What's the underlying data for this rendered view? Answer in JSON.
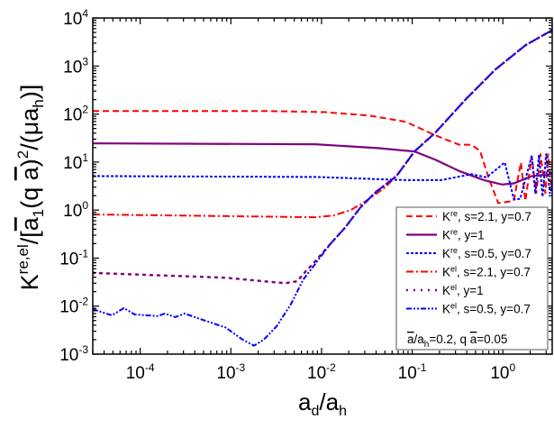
{
  "chart_data": {
    "type": "line",
    "xlabel": {
      "main": "a",
      "sub1": "d",
      "slash": "/a",
      "sub2": "h"
    },
    "ylabel": {
      "k": "K",
      "sup1": "re,el",
      "p1": "/[",
      "abar": "a",
      "sub1": "1",
      "p2": "(q ",
      "abar2": "a",
      "p3": ")",
      "sup2": "2",
      "p4": "/(μa",
      "sub2": "h",
      "p5": ")]"
    },
    "x_scale": "log",
    "y_scale": "log",
    "xlim": [
      3e-05,
      3.5
    ],
    "ylim": [
      0.001,
      10000
    ],
    "grid": false,
    "legend_position": "bottom-right",
    "x_ticks": [
      {
        "value": 0.0001,
        "base": "10",
        "exp": "-4"
      },
      {
        "value": 0.001,
        "base": "10",
        "exp": "-3"
      },
      {
        "value": 0.01,
        "base": "10",
        "exp": "-2"
      },
      {
        "value": 0.1,
        "base": "10",
        "exp": "-1"
      },
      {
        "value": 1,
        "base": "10",
        "exp": "0"
      }
    ],
    "y_ticks": [
      {
        "value": 0.001,
        "base": "10",
        "exp": "-3"
      },
      {
        "value": 0.01,
        "base": "10",
        "exp": "-2"
      },
      {
        "value": 0.1,
        "base": "10",
        "exp": "-1"
      },
      {
        "value": 1,
        "base": "10",
        "exp": "0"
      },
      {
        "value": 10,
        "base": "10",
        "exp": "1"
      },
      {
        "value": 100,
        "base": "10",
        "exp": "2"
      },
      {
        "value": 1000,
        "base": "10",
        "exp": "3"
      },
      {
        "value": 10000,
        "base": "10",
        "exp": "4"
      }
    ],
    "series": [
      {
        "name": "K^re, s=2.1, y=0.7",
        "k": "K",
        "sup": "re",
        "rest": ", s=2.1, y=0.7",
        "color": "#ff0000",
        "style": "dashed",
        "x": [
          3e-05,
          0.0027,
          0.0107,
          0.034,
          0.085,
          0.155,
          0.21,
          0.33,
          0.45,
          0.56,
          0.71,
          0.89,
          1.32,
          1.58,
          1.77,
          2.08,
          2.33,
          2.6,
          2.94,
          3.15,
          3.45
        ],
        "y": [
          115,
          115,
          110,
          93,
          69,
          41,
          32,
          23,
          23,
          17,
          4.2,
          1.4,
          1.55,
          9.8,
          1.55,
          13.5,
          2.2,
          15,
          2.2,
          15,
          2.7
        ]
      },
      {
        "name": "K^re, y=1",
        "k": "K",
        "sup": "re",
        "rest": ", y=1",
        "color": "#800080",
        "style": "solid",
        "x": [
          3e-05,
          0.0085,
          0.042,
          0.106,
          0.18,
          0.33,
          0.62,
          0.98,
          1.32,
          2.08,
          3.5
        ],
        "y": [
          24.5,
          23.5,
          19.5,
          16.6,
          11.2,
          6.5,
          4.2,
          3.4,
          3.6,
          5.1,
          5.6
        ]
      },
      {
        "name": "K^re, s=0.5, y=0.7",
        "k": "K",
        "sup": "re",
        "rest": ", s=0.5, y=0.7",
        "color": "#0000ff",
        "style": "dotted",
        "x": [
          3e-05,
          0.0085,
          0.085,
          0.21,
          0.45,
          0.66,
          1.05,
          1.32,
          1.55,
          2.08,
          2.28,
          2.5,
          2.74,
          3.0,
          3.3,
          3.5
        ],
        "y": [
          5.1,
          4.9,
          4.2,
          4.2,
          5.6,
          4.8,
          9.8,
          1.7,
          1.7,
          13.5,
          2.2,
          14,
          1.9,
          15,
          2.2,
          3.4
        ]
      },
      {
        "name": "K^el, s=2.1, y=0.7",
        "k": "K",
        "sup": "el",
        "rest": ", s=2.1, y=0.7",
        "color": "#ff0000",
        "style": "dashdot",
        "x": [
          3e-05,
          0.0085,
          0.0135,
          0.021,
          0.031,
          0.05,
          0.067,
          0.106,
          0.18,
          0.39,
          0.83,
          1.77,
          3.5
        ],
        "y": [
          0.81,
          0.71,
          0.77,
          1.0,
          1.55,
          2.95,
          5.1,
          16.6,
          41,
          204,
          850,
          2700,
          5600
        ]
      },
      {
        "name": "K^el, y=1",
        "k": "K",
        "sup": "el",
        "rest": ", y=1",
        "color": "#800080",
        "style": "sparsedot",
        "x": [
          3e-05,
          0.00087,
          0.0027,
          0.004,
          0.0054,
          0.0068,
          0.008,
          0.0126,
          0.018,
          0.027,
          0.04,
          0.067,
          0.106,
          0.18,
          0.39,
          0.83,
          1.77,
          3.5
        ],
        "y": [
          0.049,
          0.039,
          0.032,
          0.03,
          0.033,
          0.055,
          0.075,
          0.2,
          0.42,
          1.15,
          2.4,
          5.1,
          16.6,
          41,
          204,
          850,
          2700,
          5600
        ]
      },
      {
        "name": "K^el, s=0.5, y=0.7",
        "k": "K",
        "sup": "el",
        "rest": ", s=0.5, y=0.7",
        "color": "#0000ff",
        "style": "dashdotdot",
        "x": [
          3e-05,
          3.9e-05,
          4.9e-05,
          6.6e-05,
          8.7e-05,
          0.000155,
          0.000186,
          0.000245,
          0.00031,
          0.00042,
          0.00087,
          0.00135,
          0.0018,
          0.0023,
          0.0032,
          0.0046,
          0.0063,
          0.0085,
          0.0126,
          0.018,
          0.027,
          0.04,
          0.067,
          0.106,
          0.18,
          0.39,
          0.83,
          1.77,
          3.5
        ],
        "y": [
          0.0087,
          0.0073,
          0.0064,
          0.0091,
          0.0067,
          0.0062,
          0.007,
          0.0059,
          0.007,
          0.0057,
          0.0036,
          0.002,
          0.0015,
          0.002,
          0.0038,
          0.011,
          0.036,
          0.075,
          0.2,
          0.42,
          1.15,
          2.4,
          5.1,
          16.6,
          41,
          204,
          850,
          2700,
          5600
        ]
      }
    ],
    "legend_note": {
      "abar": "a",
      "p1": "/a",
      "sub": "h",
      "p2": "=0.2, q ",
      "abar2": "a",
      "p3": "=0.05"
    }
  }
}
